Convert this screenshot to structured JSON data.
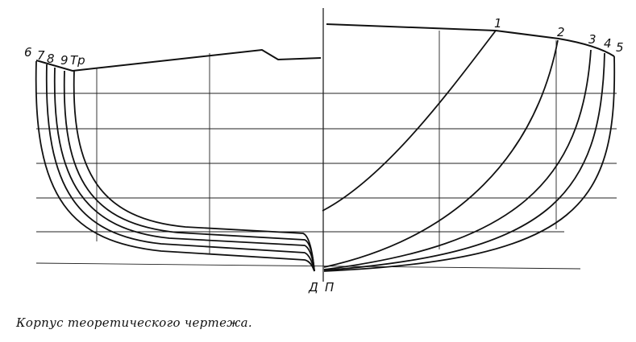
{
  "drawing": {
    "stations_aft": [
      "6",
      "7",
      "8",
      "9",
      "Тр"
    ],
    "stations_fore": [
      "1",
      "2",
      "3",
      "4",
      "5"
    ],
    "centerline_label_left": "Д",
    "centerline_label_right": "П"
  },
  "caption": "Корпус теоретического чертежа."
}
